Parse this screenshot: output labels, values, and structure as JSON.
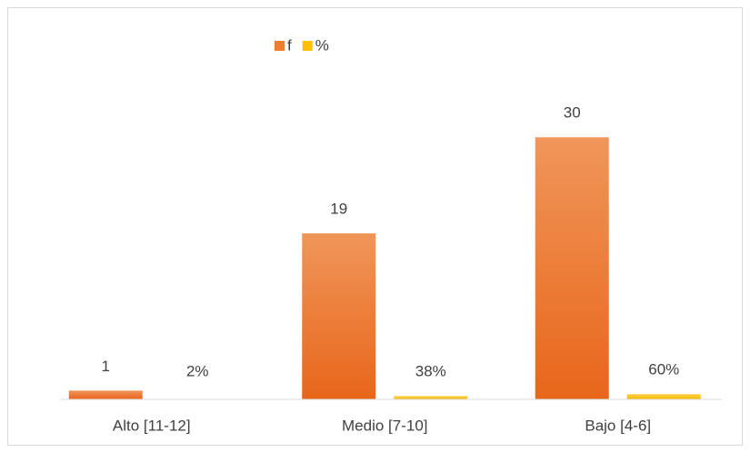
{
  "chart_data": {
    "type": "bar",
    "categories": [
      "Alto [11-12]",
      "Medio [7-10]",
      "Bajo [4-6]"
    ],
    "series": [
      {
        "name": "f",
        "color": "#ed7d31",
        "values": [
          1,
          19,
          30
        ]
      },
      {
        "name": "%",
        "color": "#ffc000",
        "values": [
          0.02,
          0.38,
          0.6
        ],
        "value_labels": [
          "2%",
          "38%",
          "60%"
        ]
      }
    ],
    "ylim": [
      0,
      32
    ],
    "legend": "top"
  }
}
